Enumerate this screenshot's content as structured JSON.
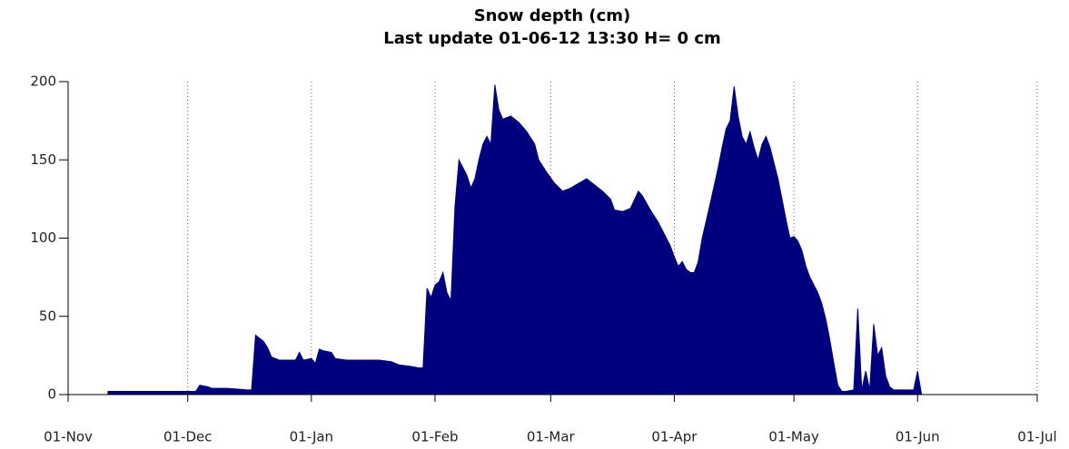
{
  "chart_data": {
    "type": "area",
    "title": "Snow depth (cm)",
    "subtitle": "Last update 01-06-12 13:30 H= 0 cm",
    "color": "#00007f",
    "x": [
      10,
      20,
      30,
      32,
      33,
      35,
      36,
      40,
      45,
      46,
      47,
      48,
      49,
      50,
      51,
      53,
      57,
      58,
      59,
      61,
      62,
      63,
      64,
      66,
      67,
      70,
      78,
      81,
      83,
      86,
      88,
      89,
      90,
      91,
      92,
      93,
      94,
      95,
      96,
      97,
      98,
      99,
      100,
      101,
      102,
      103,
      104,
      105,
      106,
      107,
      108,
      109,
      111,
      113,
      115,
      117,
      118,
      120,
      122,
      124,
      126,
      128,
      130,
      132,
      134,
      136,
      137,
      139,
      141,
      143,
      144,
      146,
      148,
      149,
      151,
      152,
      153,
      154,
      155,
      156,
      157,
      158,
      159,
      161,
      163,
      164,
      165,
      166,
      167,
      168,
      169,
      170,
      171,
      172,
      173,
      174,
      175,
      176,
      177,
      178,
      179,
      180,
      181,
      182,
      183,
      184,
      185,
      186,
      187,
      188,
      189,
      190,
      191,
      192,
      193,
      194,
      195,
      197,
      198,
      199,
      200,
      201,
      202,
      203,
      204,
      205,
      206,
      207,
      212,
      213,
      214
    ],
    "values": [
      2,
      2,
      2,
      2,
      6,
      5,
      4,
      4,
      3,
      3,
      38,
      36,
      34,
      30,
      24,
      22,
      22,
      27,
      22,
      23,
      20,
      29,
      28,
      27,
      23,
      22,
      22,
      21,
      19,
      18,
      17,
      17,
      68,
      62,
      70,
      72,
      78,
      65,
      60,
      120,
      150,
      145,
      140,
      132,
      138,
      150,
      160,
      165,
      160,
      198,
      182,
      176,
      178,
      174,
      168,
      160,
      150,
      142,
      135,
      130,
      132,
      135,
      138,
      134,
      130,
      125,
      118,
      117,
      119,
      130,
      127,
      118,
      110,
      105,
      95,
      88,
      82,
      85,
      80,
      78,
      78,
      85,
      100,
      122,
      145,
      158,
      170,
      175,
      197,
      178,
      165,
      160,
      168,
      158,
      150,
      160,
      165,
      158,
      148,
      138,
      125,
      112,
      100,
      101,
      98,
      92,
      82,
      75,
      70,
      65,
      58,
      48,
      35,
      20,
      6,
      2,
      2,
      3,
      55,
      3,
      15,
      3,
      45,
      25,
      30,
      12,
      5,
      3,
      3,
      15,
      0
    ],
    "xlim": [
      0,
      243
    ],
    "xticks": [
      {
        "value": 0,
        "label": "01-Nov"
      },
      {
        "value": 30,
        "label": "01-Dec"
      },
      {
        "value": 61,
        "label": "01-Jan"
      },
      {
        "value": 92,
        "label": "01-Feb"
      },
      {
        "value": 121,
        "label": "01-Mar"
      },
      {
        "value": 152,
        "label": "01-Apr"
      },
      {
        "value": 182,
        "label": "01-May"
      },
      {
        "value": 213,
        "label": "01-Jun"
      },
      {
        "value": 243,
        "label": "01-Jul"
      }
    ],
    "ylim": [
      0,
      200
    ],
    "yticks": [
      0,
      50,
      100,
      150,
      200
    ],
    "grid": true
  }
}
